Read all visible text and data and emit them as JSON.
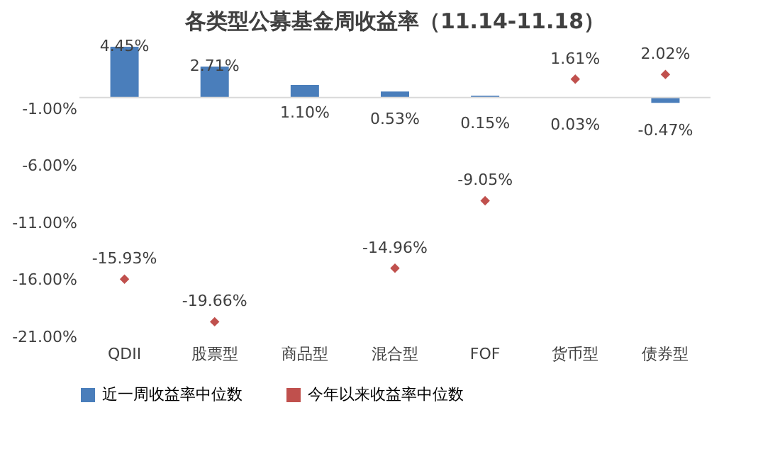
{
  "chart_data": {
    "type": "bar",
    "title": "各类型公募基金周收益率（11.14-11.18）",
    "categories": [
      "QDII",
      "股票型",
      "商品型",
      "混合型",
      "FOF",
      "货币型",
      "债券型"
    ],
    "series": [
      {
        "name": "近一周收益率中位数",
        "color": "#4a7ebb",
        "values": [
          4.45,
          2.71,
          1.1,
          0.53,
          0.15,
          0.03,
          -0.47
        ],
        "value_labels": [
          "4.45%",
          "2.71%",
          "1.10%",
          "0.53%",
          "0.15%",
          "0.03%",
          "-0.47%"
        ]
      },
      {
        "name": "今年以来收益率中位数",
        "type": "scatter",
        "marker": "diamond",
        "color": "#c0504d",
        "values": [
          -15.93,
          -19.66,
          null,
          -14.96,
          -9.05,
          1.61,
          2.02
        ],
        "value_labels": [
          "-15.93%",
          "-19.66%",
          null,
          "-14.96%",
          "-9.05%",
          "1.61%",
          "2.02%"
        ]
      }
    ],
    "ylim": [
      -21,
      4.45
    ],
    "yticks": [
      {
        "value": -1,
        "label": "-1.00%"
      },
      {
        "value": -6,
        "label": "-6.00%"
      },
      {
        "value": -11,
        "label": "-11.00%"
      },
      {
        "value": -16,
        "label": "-16.00%"
      },
      {
        "value": -21,
        "label": "-21.00%"
      }
    ],
    "ref_lines": [
      {
        "axis": "y",
        "value": 0,
        "color": "#d9d9d9"
      }
    ],
    "grid": false,
    "legend": "bottom"
  }
}
